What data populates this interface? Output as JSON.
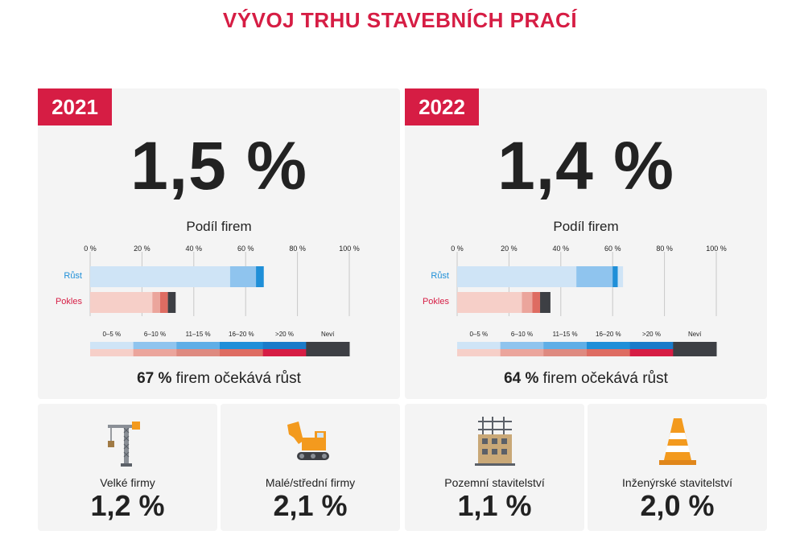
{
  "title": "VÝVOJ TRHU STAVEBNÍCH PRACÍ",
  "panels": [
    {
      "year": "2021",
      "value": "1,5 %",
      "share_label": "Podíl firem",
      "growth_pct": "67 %",
      "growth_text": " firem očekává růst"
    },
    {
      "year": "2022",
      "value": "1,4 %",
      "share_label": "Podíl firem",
      "growth_pct": "64 %",
      "growth_text": " firem očekává růst"
    }
  ],
  "segments": [
    {
      "name": "rust",
      "items": []
    }
  ],
  "colors": {
    "accent": "#d61d44",
    "rust": [
      "#cfe4f6",
      "#8fc4ee",
      "#1f8fd8"
    ],
    "pokles": [
      "#f6cfc8",
      "#eba59c",
      "#de6c62",
      "#d61d44",
      "#3d3f44"
    ],
    "legend_rust": [
      "#cfe4f6",
      "#8fc4ee",
      "#5faee6",
      "#1f8fd8",
      "#1a7bc9",
      "#3d3f44"
    ],
    "legend_pokles": [
      "#f6cfc8",
      "#eba59c",
      "#de8a80",
      "#de6c62",
      "#d61d44",
      "#3d3f44"
    ]
  },
  "chart_data": [
    {
      "type": "bar",
      "orientation": "horizontal",
      "stacked": true,
      "title": "Podíl firem",
      "xlim": [
        0,
        100
      ],
      "xticks": [
        "0 %",
        "20 %",
        "40 %",
        "60 %",
        "80 %",
        "100 %"
      ],
      "categories": [
        "Růst",
        "Pokles"
      ],
      "legend": [
        "0–5 %",
        "6–10 %",
        "11–15 %",
        "16–20 %",
        ">20 %",
        "Neví"
      ],
      "rust_segments": [
        54,
        10,
        3
      ],
      "pokles_segments": [
        24,
        3,
        3,
        0,
        3
      ],
      "year": "2021"
    },
    {
      "type": "bar",
      "orientation": "horizontal",
      "stacked": true,
      "title": "Podíl firem",
      "xlim": [
        0,
        100
      ],
      "xticks": [
        "0 %",
        "20 %",
        "40 %",
        "60 %",
        "80 %",
        "100 %"
      ],
      "categories": [
        "Růst",
        "Pokles"
      ],
      "legend": [
        "0–5 %",
        "6–10 %",
        "11–15 %",
        "16–20 %",
        ">20 %",
        "Neví"
      ],
      "rust_segments": [
        46,
        14,
        2,
        2
      ],
      "pokles_segments": [
        25,
        4,
        3,
        0,
        4
      ],
      "year": "2022"
    }
  ],
  "small_panels": [
    {
      "label": "Velké firmy",
      "value": "1,2 %",
      "icon": "crane-icon"
    },
    {
      "label": "Malé/střední firmy",
      "value": "2,1 %",
      "icon": "excavator-icon"
    },
    {
      "label": "Pozemní stavitelství",
      "value": "1,1 %",
      "icon": "building-icon"
    },
    {
      "label": "Inženýrské stavitelství",
      "value": "2,0 %",
      "icon": "traffic-cone-icon"
    }
  ]
}
